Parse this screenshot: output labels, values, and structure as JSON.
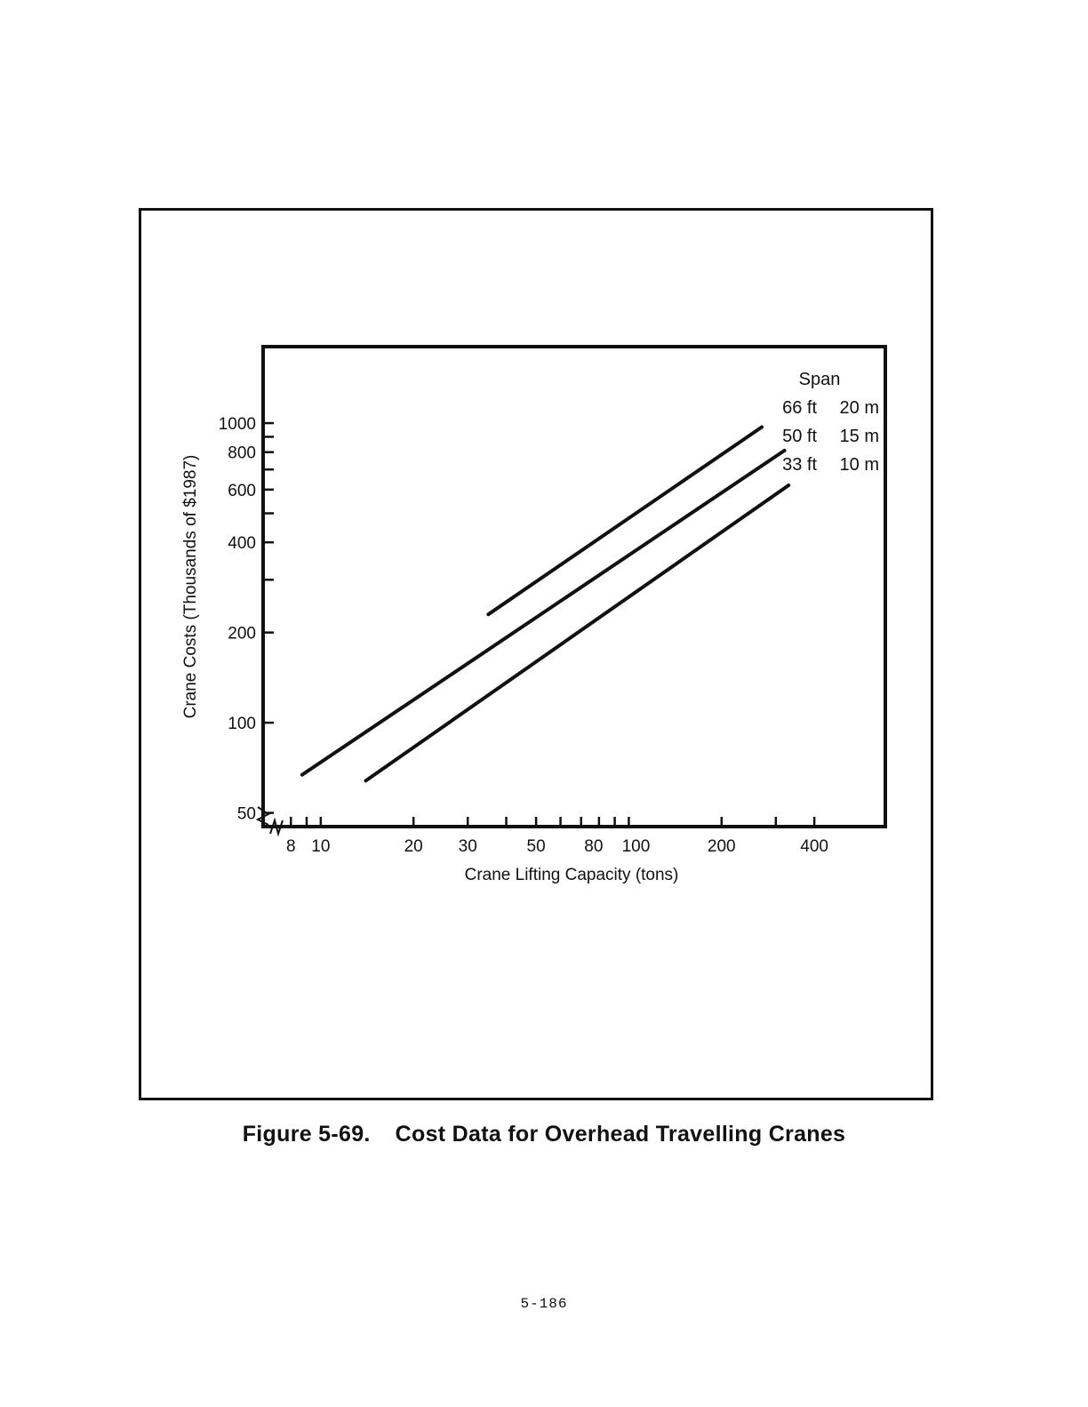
{
  "chart_data": {
    "type": "line",
    "xlabel": "Crane Lifting Capacity (tons)",
    "ylabel": "Crane Costs (Thousands of $1987)",
    "x_scale": "log",
    "y_scale": "log",
    "xlim": [
      6.5,
      680
    ],
    "ylim": [
      45,
      1800
    ],
    "x_ticks": [
      8,
      9,
      10,
      20,
      30,
      40,
      50,
      60,
      70,
      80,
      90,
      100,
      200,
      300,
      400
    ],
    "x_tick_labels": [
      {
        "value": 8,
        "label": "8"
      },
      {
        "value": 10,
        "label": "10"
      },
      {
        "value": 20,
        "label": "20"
      },
      {
        "value": 30,
        "label": "30"
      },
      {
        "value": 50,
        "label": "50"
      },
      {
        "value": 80,
        "label": "80"
      },
      {
        "value": 100,
        "label": "100"
      },
      {
        "value": 200,
        "label": "200"
      },
      {
        "value": 400,
        "label": "400"
      }
    ],
    "y_ticks": [
      50,
      100,
      200,
      300,
      400,
      500,
      600,
      700,
      800,
      900,
      1000
    ],
    "y_tick_labels": [
      {
        "value": 50,
        "label": "50"
      },
      {
        "value": 100,
        "label": "100"
      },
      {
        "value": 200,
        "label": "200"
      },
      {
        "value": 400,
        "label": "400"
      },
      {
        "value": 600,
        "label": "600"
      },
      {
        "value": 800,
        "label": "800"
      },
      {
        "value": 1000,
        "label": "1000"
      }
    ],
    "legend": {
      "title": "Span",
      "placement": "top-right",
      "entries": [
        {
          "ft": "66 ft",
          "m": "20 m"
        },
        {
          "ft": "50 ft",
          "m": "15 m"
        },
        {
          "ft": "33 ft",
          "m": "10 m"
        }
      ]
    },
    "series": [
      {
        "x": [
          35,
          270
        ],
        "y": [
          230,
          970
        ]
      },
      {
        "x": [
          8.7,
          320
        ],
        "y": [
          67,
          810
        ]
      },
      {
        "x": [
          14,
          330
        ],
        "y": [
          64,
          620
        ]
      }
    ],
    "grid": false
  },
  "caption": {
    "number": "Figure 5-69.",
    "title": "Cost Data for Overhead Travelling Cranes"
  },
  "page_number": "5-186"
}
